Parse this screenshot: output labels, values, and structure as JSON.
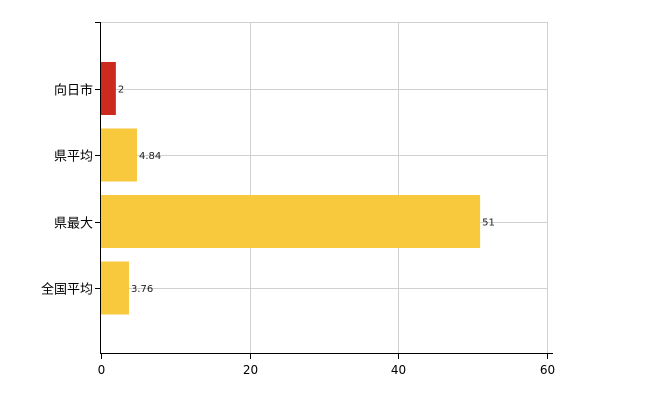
{
  "chart_data": {
    "type": "bar",
    "orientation": "horizontal",
    "categories": [
      "向日市",
      "県平均",
      "県最大",
      "全国平均"
    ],
    "values": [
      2,
      4.84,
      51,
      3.76
    ],
    "value_labels": [
      "2",
      "4.84",
      "51",
      "3.76"
    ],
    "bar_colors": [
      "#cc2a1f",
      "#f8c83d",
      "#f8c83d",
      "#f8c83d"
    ],
    "xlim": [
      0,
      60
    ],
    "x_ticks": [
      0,
      20,
      40,
      60
    ],
    "x_tick_labels": [
      "0",
      "20",
      "40",
      "60"
    ],
    "grid": true,
    "grid_color": "#d0d0d0",
    "axis_color": "#000000"
  }
}
